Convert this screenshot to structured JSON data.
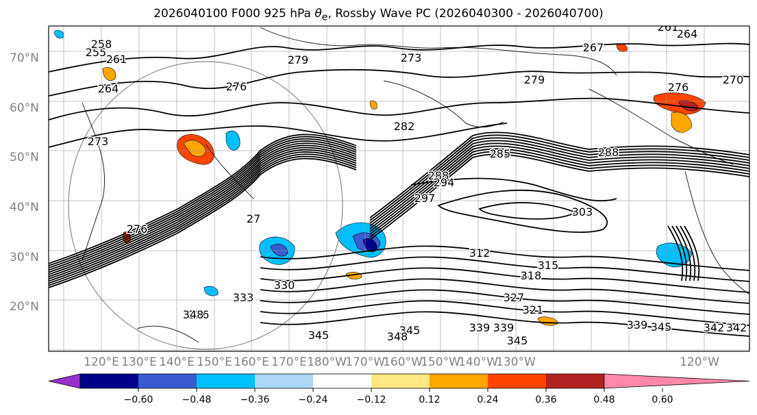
{
  "title_main": "2026040100 F000 925 hPa ",
  "title_var": "θ",
  "title_sub": "e",
  "title_rest": ", Rossby Wave PC (2026040300 - 2026040700)",
  "lat_labels": [
    "70°N",
    "60°N",
    "50°N",
    "40°N",
    "30°N",
    "20°N"
  ],
  "lon_labels": [
    "120°E",
    "130°E",
    "140°E",
    "150°E",
    "160°E",
    "170°E",
    "180°W",
    "170°W",
    "160°W",
    "150°W",
    "140°W",
    "130°W",
    "120°W"
  ],
  "colorbar": {
    "colors": [
      "#9932cc",
      "#00008b",
      "#3a5bcf",
      "#00bfff",
      "#add8f5",
      "#ffffff",
      "#ffe882",
      "#ffa500",
      "#ff4500",
      "#b22222",
      "#ff88aa"
    ],
    "ticks": [
      "−0.60",
      "−0.48",
      "−0.36",
      "−0.24",
      "−0.12",
      "0.12",
      "0.24",
      "0.36",
      "0.48",
      "0.60"
    ]
  },
  "contour_labels": [
    {
      "text": "255"
    },
    {
      "text": "258"
    },
    {
      "text": "261"
    },
    {
      "text": "264"
    },
    {
      "text": "279"
    },
    {
      "text": "276"
    },
    {
      "text": "273"
    },
    {
      "text": "267"
    },
    {
      "text": "264"
    },
    {
      "text": "261"
    },
    {
      "text": "279"
    },
    {
      "text": "276"
    },
    {
      "text": "282"
    },
    {
      "text": "285"
    },
    {
      "text": "288"
    },
    {
      "text": "288"
    },
    {
      "text": "294"
    },
    {
      "text": "297"
    },
    {
      "text": "303"
    },
    {
      "text": "312"
    },
    {
      "text": "315"
    },
    {
      "text": "318"
    },
    {
      "text": "321"
    },
    {
      "text": "327"
    },
    {
      "text": "330"
    },
    {
      "text": "333"
    },
    {
      "text": "336"
    },
    {
      "text": "339"
    },
    {
      "text": "342"
    },
    {
      "text": "345"
    },
    {
      "text": "345"
    },
    {
      "text": "348"
    },
    {
      "text": "348"
    },
    {
      "text": "339"
    },
    {
      "text": "345"
    },
    {
      "text": "339"
    },
    {
      "text": "345"
    },
    {
      "text": "342"
    },
    {
      "text": "273"
    },
    {
      "text": "270"
    },
    {
      "text": "27"
    },
    {
      "text": "276"
    }
  ]
}
